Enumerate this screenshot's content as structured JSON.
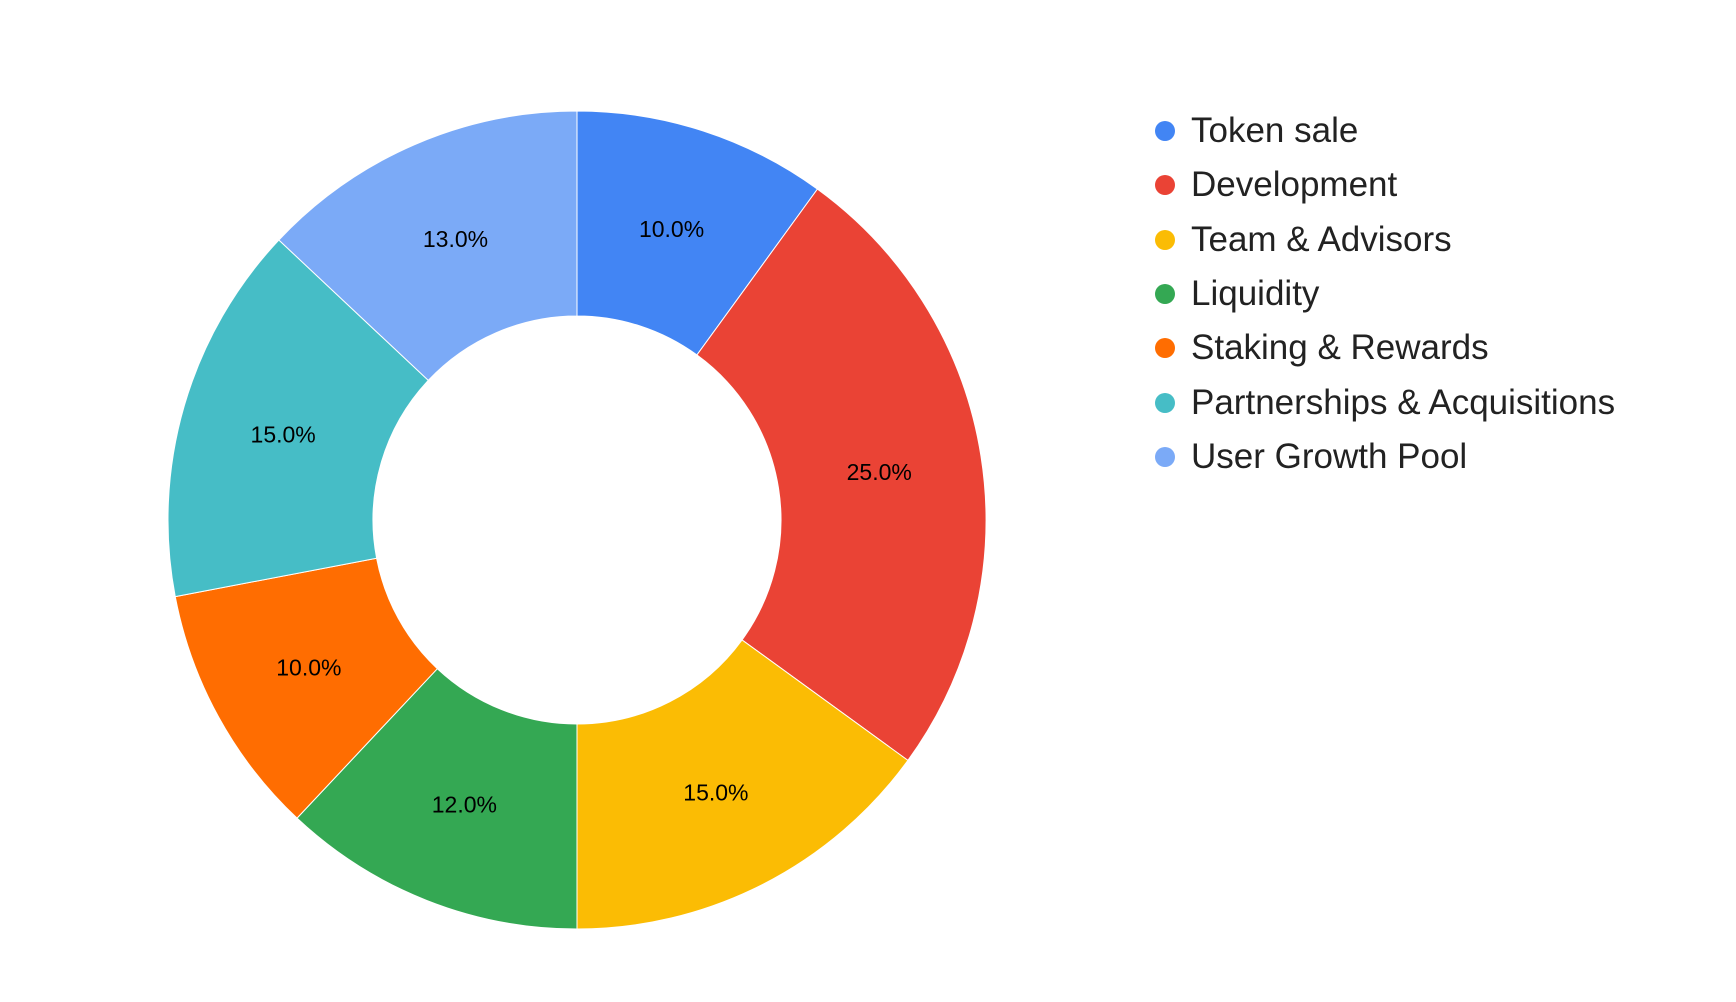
{
  "chart_data": {
    "type": "pie",
    "donut": true,
    "title": "",
    "legend_position": "right",
    "slices": [
      {
        "label": "Token sale",
        "value": 10.0,
        "display": "10.0%",
        "color": "#4285f4"
      },
      {
        "label": "Development",
        "value": 25.0,
        "display": "25.0%",
        "color": "#ea4335"
      },
      {
        "label": "Team & Advisors",
        "value": 15.0,
        "display": "15.0%",
        "color": "#fbbc04"
      },
      {
        "label": "Liquidity",
        "value": 12.0,
        "display": "12.0%",
        "color": "#34a853"
      },
      {
        "label": "Staking & Rewards",
        "value": 10.0,
        "display": "10.0%",
        "color": "#ff6d01"
      },
      {
        "label": "Partnerships & Acquisitions",
        "value": 15.0,
        "display": "15.0%",
        "color": "#46bdc6"
      },
      {
        "label": "User Growth Pool",
        "value": 13.0,
        "display": "13.0%",
        "color": "#7baaf7"
      }
    ]
  }
}
